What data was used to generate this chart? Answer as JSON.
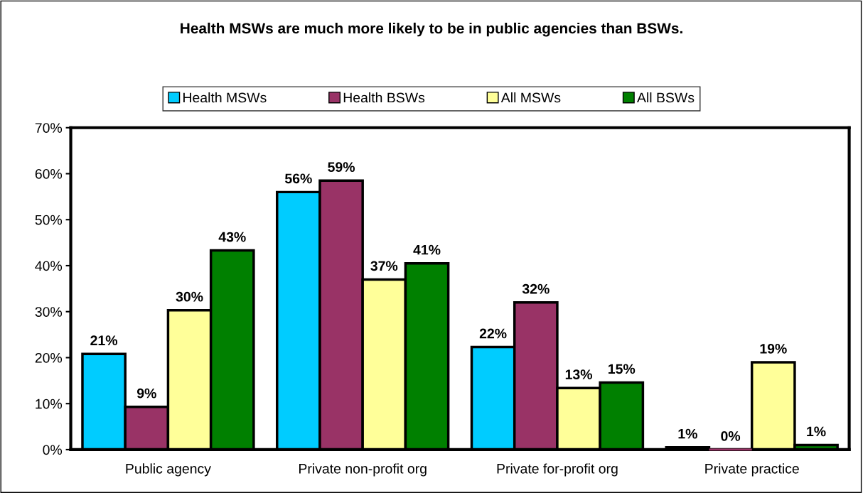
{
  "chart_data": {
    "type": "bar",
    "title": "Health MSWs are much more likely to be in public agencies than BSWs.",
    "categories": [
      "Public agency",
      "Private non-profit org",
      "Private for-profit org",
      "Private practice"
    ],
    "series": [
      {
        "name": "Health MSWs",
        "color": "#00ccff",
        "values": [
          20.8,
          56,
          22.3,
          0.5
        ],
        "value_labels": [
          "21%",
          "56%",
          "22%",
          "1%"
        ]
      },
      {
        "name": "Health BSWs",
        "color": "#993366",
        "values": [
          9.3,
          58.5,
          32,
          0
        ],
        "value_labels": [
          "9%",
          "59%",
          "32%",
          "0%"
        ]
      },
      {
        "name": "All MSWs",
        "color": "#ffff99",
        "values": [
          30.3,
          37,
          13.4,
          19
        ],
        "value_labels": [
          "30%",
          "37%",
          "13%",
          "19%"
        ]
      },
      {
        "name": "All BSWs",
        "color": "#008000",
        "values": [
          43.3,
          40.5,
          14.6,
          1
        ],
        "value_labels": [
          "43%",
          "41%",
          "15%",
          "1%"
        ]
      }
    ],
    "ylim": [
      0,
      70
    ],
    "yticks": [
      {
        "value": 0,
        "label": "0%"
      },
      {
        "value": 10,
        "label": "10%"
      },
      {
        "value": 20,
        "label": "20%"
      },
      {
        "value": 30,
        "label": "30%"
      },
      {
        "value": 40,
        "label": "40%"
      },
      {
        "value": 50,
        "label": "50%"
      },
      {
        "value": 60,
        "label": "60%"
      },
      {
        "value": 70,
        "label": "70%"
      }
    ],
    "grid": false,
    "legend": "top"
  }
}
